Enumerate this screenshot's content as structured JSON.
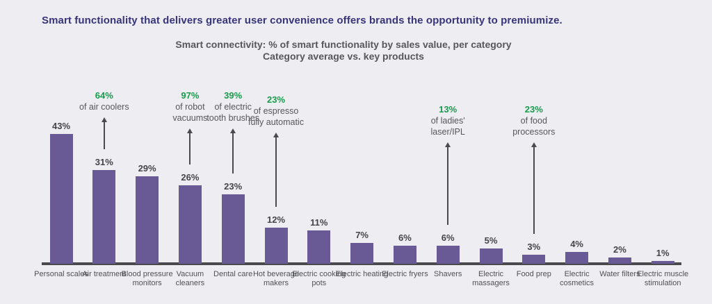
{
  "page": {
    "background": "#eeedf2"
  },
  "headline": {
    "text": "Smart functionality that delivers greater user convenience offers brands the opportunity to premiumize.",
    "color": "#37347a"
  },
  "chart_title": {
    "line1": "Smart connectivity: % of smart functionality by sales value, per category",
    "line2": "Category average vs. key products",
    "color": "#57575a"
  },
  "chart_data": {
    "type": "bar",
    "title": "Smart connectivity: % of smart functionality by sales value, per category",
    "subtitle": "Category average vs. key products",
    "unit": "%",
    "ylim": [
      0,
      45
    ],
    "grid": false,
    "legend": "none",
    "categories": [
      "Personal scales",
      "Air treatment",
      "Blood pressure monitors",
      "Vacuum cleaners",
      "Dental care",
      "Hot beverage makers",
      "Electric cooking pots",
      "Electric heating",
      "Electric fryers",
      "Shavers",
      "Electric massagers",
      "Food prep",
      "Electric cosmetics",
      "Water filters",
      "Electric muscle stimulation"
    ],
    "values": [
      43,
      31,
      29,
      26,
      23,
      12,
      11,
      7,
      6,
      6,
      5,
      3,
      4,
      2,
      1
    ],
    "value_labels": [
      "43%",
      "31%",
      "29%",
      "26%",
      "23%",
      "12%",
      "11%",
      "7%",
      "6%",
      "6%",
      "5%",
      "3%",
      "4%",
      "2%",
      "1%"
    ],
    "annotations": [
      {
        "value": "64%",
        "label": "of air coolers",
        "category": "Air treatment",
        "category_index": 1
      },
      {
        "value": "97%",
        "label": "of robot vacuums",
        "category": "Vacuum cleaners",
        "category_index": 3
      },
      {
        "value": "39%",
        "label": "of electric tooth brushes",
        "category": "Dental care",
        "category_index": 4
      },
      {
        "value": "23%",
        "label": "of espresso fully automatic",
        "category": "Hot beverage makers",
        "category_index": 5
      },
      {
        "value": "13%",
        "label": "of ladies' laser/IPL",
        "category": "Shavers",
        "category_index": 9
      },
      {
        "value": "23%",
        "label": "of food processors",
        "category": "Food prep",
        "category_index": 11
      }
    ],
    "colors": {
      "bar": "#695a96",
      "axis": "#4a4a4c",
      "value_label": "#454547",
      "category_label": "#4f5055",
      "annotation_value": "#179c4b",
      "annotation_label": "#57575a"
    }
  }
}
